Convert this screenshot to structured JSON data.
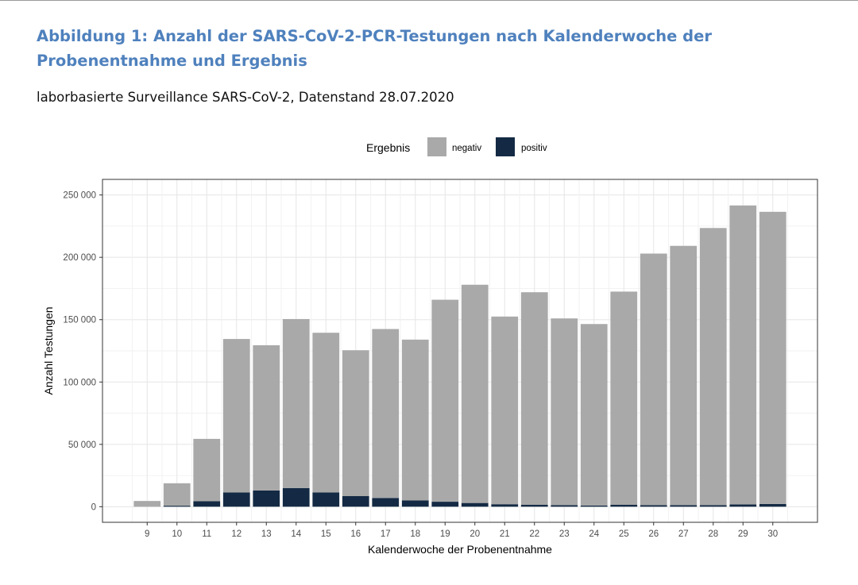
{
  "header": {
    "title": "Abbildung 1: Anzahl der SARS-CoV-2-PCR-Testungen nach Kalenderwoche der Probenentnahme und Ergebnis",
    "subtitle": "laborbasierte Surveillance SARS-CoV-2, Datenstand 28.07.2020"
  },
  "chart_data": {
    "type": "bar",
    "stacked": true,
    "title": "",
    "xlabel": "Kalenderwoche der Probenentnahme",
    "ylabel": "Anzahl Testungen",
    "legend_title": "Ergebnis",
    "legend_position": "top",
    "grid": true,
    "ylim": [
      -12500,
      262500
    ],
    "yticks": [
      0,
      50000,
      100000,
      150000,
      200000,
      250000
    ],
    "ytick_labels": [
      "0",
      "50 000",
      "100 000",
      "150 000",
      "200 000",
      "250 000"
    ],
    "categories": [
      "9",
      "10",
      "11",
      "12",
      "13",
      "14",
      "15",
      "16",
      "17",
      "18",
      "19",
      "20",
      "21",
      "22",
      "23",
      "24",
      "25",
      "26",
      "27",
      "28",
      "29",
      "30"
    ],
    "series": [
      {
        "name": "positiv",
        "color": "#142a44",
        "values": [
          0,
          800,
          4400,
          11500,
          13000,
          15000,
          11500,
          8500,
          7000,
          5000,
          4000,
          3000,
          2000,
          1500,
          1200,
          1000,
          1500,
          1200,
          1200,
          1200,
          1800,
          2200
        ]
      },
      {
        "name": "negativ",
        "color": "#a9a9a9",
        "values": [
          4600,
          18000,
          50000,
          123000,
          116500,
          135500,
          128000,
          117000,
          135500,
          129000,
          162000,
          175000,
          150500,
          170500,
          149800,
          145500,
          171000,
          201800,
          208000,
          222300,
          239800,
          234300
        ]
      }
    ]
  }
}
